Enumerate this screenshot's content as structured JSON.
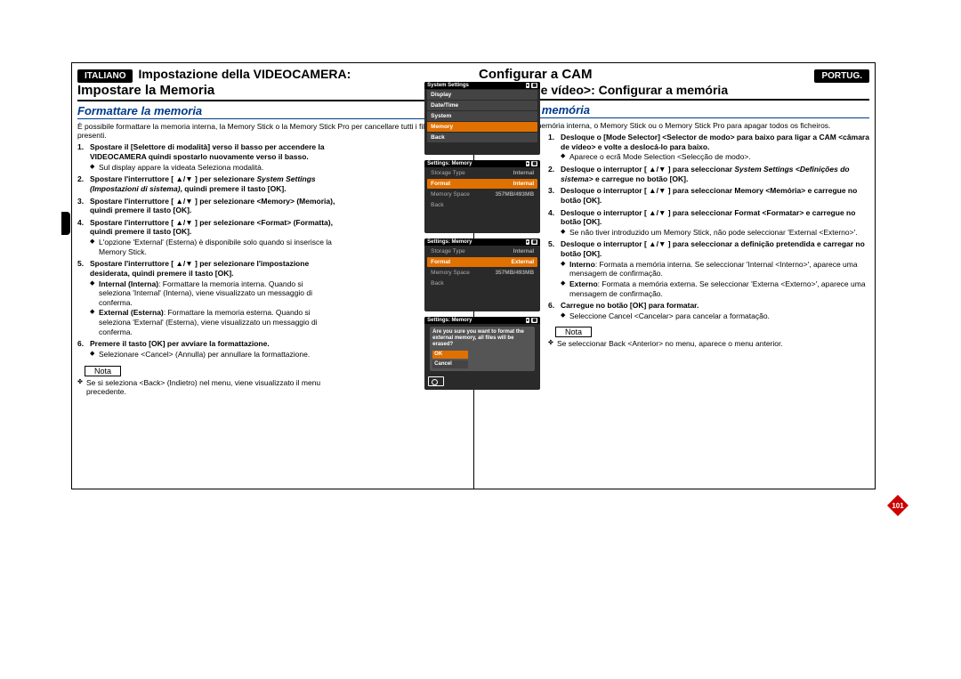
{
  "page_number": "101",
  "colors": {
    "section_title": "#003a8c",
    "highlight": "#e07000",
    "screen_bg": "#2a2a2a"
  },
  "left": {
    "lang_tag": "ITALIANO",
    "title_line1": "Impostazione della VIDEOCAMERA:",
    "title_line2": "Impostare la Memoria",
    "section": "Formattare la memoria",
    "intro": "È possibile formattare la memoria interna, la Memory Stick o la Memory Stick Pro per cancellare tutti i file in esse presenti.",
    "steps": {
      "s1_lead": "Spostare il [Selettore di modalità] verso il basso per accendere la VIDEOCAMERA quindi spostarlo nuovamente verso il basso.",
      "s1_sub": "Sul display appare la videata Seleziona modalità.",
      "s2_lead": "Spostare l'interruttore [ ▲/▼ ] per selezionare",
      "s2_italic": "System Settings (Impostazioni di sistema)",
      "s2_tail": ", quindi premere il tasto [OK].",
      "s3_lead": "Spostare l'interruttore [ ▲/▼ ] per selezionare <Memory> (Memoria), quindi premere il tasto [OK].",
      "s4_lead": "Spostare l'interruttore [ ▲/▼ ] per selezionare <Format> (Formatta), quindi premere il tasto [OK].",
      "s4_sub": "L'opzione 'External' (Esterna) è disponibile solo quando si inserisce la Memory Stick.",
      "s5_lead": "Spostare l'interruttore [ ▲/▼ ] per selezionare l'impostazione desiderata, quindi premere il tasto [OK].",
      "s5_sub1_lead": "Internal (Interna)",
      "s5_sub1_text": ": Formattare la memoria interna. Quando si seleziona 'Internal' (Interna), viene visualizzato un messaggio di conferma.",
      "s5_sub2_lead": "External (Esterna)",
      "s5_sub2_text": ": Formattare la memoria esterna. Quando si seleziona 'External' (Esterna), viene visualizzato un messaggio di conferma.",
      "s6_lead": "Premere il tasto [OK] per avviare la formattazione.",
      "s6_sub": "Selezionare <Cancel> (Annulla) per annullare la formattazione."
    },
    "nota_label": "Nota",
    "nota_text": "Se si seleziona <Back> (Indietro) nel menu, viene visualizzato il menu precedente."
  },
  "right": {
    "lang_tag": "PORTUG.",
    "title_line1": "Configurar a CAM",
    "title_line2": "<câmara de vídeo>: Configurar a memória",
    "section": "Formatar a memória",
    "intro": "Pode formatar a memória interna, o Memory Stick ou o Memory Stick Pro para apagar todos os ficheiros.",
    "steps": {
      "s1_lead": "Desloque o [Mode Selector] <Selector de modo> para baixo para ligar a CAM <câmara de vídeo> e volte a deslocá-lo para baixo.",
      "s1_sub": "Aparece o ecrã Mode Selection <Selecção de modo>.",
      "s2_lead": "Desloque o interruptor [ ▲/▼ ] para seleccionar",
      "s2_italic": "System Settings <Definições do sistema>",
      "s2_tail": " e carregue no botão [OK].",
      "s3_lead": "Desloque o interruptor [ ▲/▼ ] para seleccionar Memory <Memória> e carregue no botão [OK].",
      "s4_lead": "Desloque o interruptor [ ▲/▼ ] para seleccionar Format <Formatar> e carregue no botão [OK].",
      "s4_sub": "Se não tiver introduzido um Memory Stick, não pode seleccionar 'External <Externo>'.",
      "s5_lead": "Desloque o interruptor [ ▲/▼ ] para seleccionar a definição pretendida e carregar no botão [OK].",
      "s5_sub1_lead": "Interno",
      "s5_sub1_text": ": Formata a memória interna. Se seleccionar 'Internal <Interno>', aparece uma mensagem de confirmação.",
      "s5_sub2_lead": "Externo",
      "s5_sub2_text": ": Formata a memória externa. Se seleccionar 'Externa <Externo>', aparece uma mensagem de confirmação.",
      "s6_lead": "Carregue no botão [OK] para formatar.",
      "s6_sub": "Seleccione Cancel <Cancelar> para cancelar a formatação."
    },
    "nota_label": "Nota",
    "nota_text": "Se seleccionar Back <Anterior> no menu, aparece o menu anterior."
  },
  "screens": {
    "s3": {
      "title": "System Settings",
      "items": [
        "Display",
        "Date/Time",
        "System",
        "Memory",
        "Back"
      ],
      "sel": 3
    },
    "s4": {
      "title": "Settings: Memory",
      "rows": [
        "Storage Type|Internal",
        "Format|Internal",
        "Memory Space|357MB/493MB",
        "Back|"
      ],
      "sel": 1
    },
    "s5": {
      "title": "Settings: Memory",
      "rows": [
        "Storage Type|Internal",
        "Format|External",
        "Memory Space|357MB/493MB",
        "Back|"
      ],
      "sel": 1
    },
    "s6": {
      "title": "Settings: Memory",
      "confirm": "Are you sure you want to format the external memory, all files will be erased?",
      "ok": "OK",
      "cancel": "Cancel"
    }
  }
}
